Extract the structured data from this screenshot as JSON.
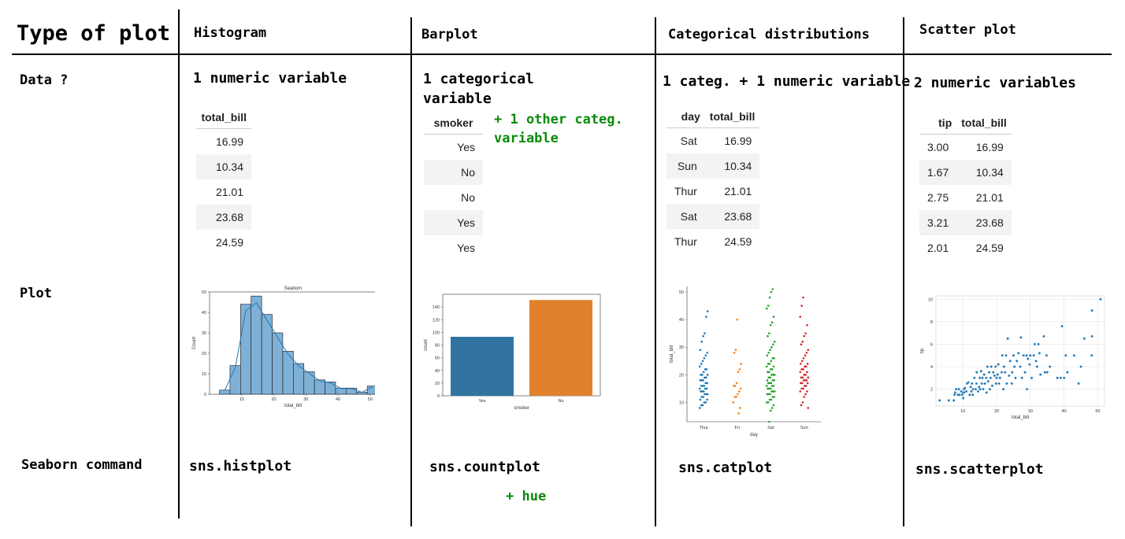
{
  "header": {
    "corner": "Type of plot",
    "columns": [
      "Histogram",
      "Barplot",
      "Categorical distributions",
      "Scatter plot"
    ]
  },
  "rows": {
    "data": "Data ?",
    "plot": "Plot",
    "command": "Seaborn command"
  },
  "data_desc": {
    "histogram": "1 numeric variable",
    "barplot_line1": "1 categorical",
    "barplot_line2": "variable",
    "barplot_extra_line1": "+ 1 other categ.",
    "barplot_extra_line2": "variable",
    "catdist": "1 categ. + 1 numeric variable",
    "scatter": "2 numeric variables"
  },
  "tables": {
    "histogram": {
      "headers": [
        "total_bill"
      ],
      "rows": [
        [
          "16.99"
        ],
        [
          "10.34"
        ],
        [
          "21.01"
        ],
        [
          "23.68"
        ],
        [
          "24.59"
        ]
      ]
    },
    "barplot": {
      "headers": [
        "smoker"
      ],
      "rows": [
        [
          "Yes"
        ],
        [
          "No"
        ],
        [
          "No"
        ],
        [
          "Yes"
        ],
        [
          "Yes"
        ]
      ]
    },
    "catdist": {
      "headers": [
        "day",
        "total_bill"
      ],
      "rows": [
        [
          "Sat",
          "16.99"
        ],
        [
          "Sun",
          "10.34"
        ],
        [
          "Thur",
          "21.01"
        ],
        [
          "Sat",
          "23.68"
        ],
        [
          "Thur",
          "24.59"
        ]
      ]
    },
    "scatter": {
      "headers": [
        "tip",
        "total_bill"
      ],
      "rows": [
        [
          "3.00",
          "16.99"
        ],
        [
          "1.67",
          "10.34"
        ],
        [
          "2.75",
          "21.01"
        ],
        [
          "3.21",
          "23.68"
        ],
        [
          "2.01",
          "24.59"
        ]
      ]
    }
  },
  "commands": {
    "histogram": "sns.histplot",
    "barplot": "sns.countplot",
    "barplot_extra": "+ hue",
    "catdist": "sns.catplot",
    "scatter": "sns.scatterplot"
  },
  "colors": {
    "green": "#0a8a0a",
    "blue": "#1f77b4",
    "orange": "#ff7f0e",
    "sea_blue": "#3274a1",
    "sea_orange": "#e1812c",
    "green_pts": "#2ca02c",
    "red": "#d62728"
  },
  "chart_data": [
    {
      "type": "bar",
      "title": "Seaborn",
      "xlabel": "total_bill",
      "ylabel": "Count",
      "x_ticks": [
        "10",
        "20",
        "30",
        "40",
        "50"
      ],
      "y_ticks": [
        "0",
        "10",
        "20",
        "30",
        "40",
        "50"
      ],
      "xlim": [
        0,
        52
      ],
      "ylim": [
        0,
        50
      ],
      "bin_edges": [
        3.07,
        6.36,
        9.65,
        12.93,
        16.22,
        19.51,
        22.8,
        26.09,
        29.37,
        32.66,
        35.95,
        39.24,
        42.52,
        45.81,
        49.1,
        52.39
      ],
      "values": [
        2,
        14,
        44,
        48,
        39,
        30,
        21,
        15,
        11,
        7,
        6,
        3,
        3,
        1,
        4
      ],
      "kde": true
    },
    {
      "type": "bar",
      "xlabel": "smoker",
      "ylabel": "count",
      "categories": [
        "Yes",
        "No"
      ],
      "values": [
        93,
        151
      ],
      "y_ticks": [
        "0",
        "20",
        "40",
        "60",
        "80",
        "100",
        "120",
        "140"
      ],
      "ylim": [
        0,
        160
      ]
    },
    {
      "type": "scatter",
      "xlabel": "day",
      "ylabel": "total_bill",
      "categories": [
        "Thur",
        "Fri",
        "Sat",
        "Sun"
      ],
      "y_ticks": [
        "10",
        "20",
        "30",
        "40",
        "50"
      ],
      "ylim": [
        3,
        52
      ],
      "series": [
        {
          "category": "Thur",
          "values": [
            8,
            9,
            9,
            10,
            10,
            11,
            11,
            12,
            12,
            13,
            13,
            13,
            14,
            14,
            14,
            15,
            15,
            15,
            16,
            16,
            16,
            17,
            17,
            18,
            18,
            18,
            19,
            19,
            20,
            20,
            20,
            21,
            22,
            22,
            23,
            24,
            25,
            26,
            27,
            28,
            29,
            32,
            34,
            35,
            41,
            43
          ]
        },
        {
          "category": "Fri",
          "values": [
            6,
            8,
            10,
            12,
            12,
            13,
            14,
            15,
            16,
            16,
            17,
            21,
            22,
            24,
            28,
            29,
            40
          ]
        },
        {
          "category": "Sat",
          "values": [
            3,
            7,
            8,
            9,
            10,
            10,
            11,
            11,
            12,
            12,
            13,
            13,
            13,
            14,
            14,
            14,
            15,
            15,
            15,
            16,
            16,
            16,
            17,
            17,
            17,
            18,
            18,
            18,
            19,
            19,
            20,
            20,
            20,
            21,
            21,
            22,
            22,
            23,
            23,
            24,
            24,
            25,
            26,
            26,
            27,
            28,
            29,
            30,
            31,
            32,
            34,
            35,
            38,
            39,
            41,
            44,
            45,
            48,
            50,
            51
          ]
        },
        {
          "category": "Sun",
          "values": [
            8,
            9,
            10,
            12,
            13,
            14,
            14,
            15,
            15,
            16,
            16,
            17,
            17,
            17,
            18,
            18,
            18,
            19,
            19,
            19,
            20,
            20,
            21,
            21,
            22,
            22,
            23,
            23,
            24,
            24,
            25,
            26,
            27,
            28,
            29,
            31,
            32,
            34,
            35,
            38,
            41,
            45,
            48
          ]
        }
      ]
    },
    {
      "type": "scatter",
      "xlabel": "total_bill",
      "ylabel": "tip",
      "x_ticks": [
        "10",
        "20",
        "30",
        "40",
        "50"
      ],
      "y_ticks": [
        "2",
        "4",
        "6",
        "8",
        "10"
      ],
      "xlim": [
        2,
        52
      ],
      "ylim": [
        0.5,
        10.3
      ],
      "points": [
        [
          3.1,
          1
        ],
        [
          5.8,
          1
        ],
        [
          7.3,
          1
        ],
        [
          7.5,
          1.5
        ],
        [
          7.7,
          1.7
        ],
        [
          8,
          2
        ],
        [
          8.5,
          1.5
        ],
        [
          8.8,
          2
        ],
        [
          9,
          1.5
        ],
        [
          9.5,
          1.8
        ],
        [
          9.8,
          1.5
        ],
        [
          10,
          1.7
        ],
        [
          10.1,
          1.2
        ],
        [
          10.3,
          2
        ],
        [
          10.3,
          1.7
        ],
        [
          10.6,
          2.1
        ],
        [
          11,
          1.8
        ],
        [
          11.2,
          2.5
        ],
        [
          11.6,
          2.6
        ],
        [
          12,
          1.5
        ],
        [
          12.3,
          2.2
        ],
        [
          12.5,
          1.8
        ],
        [
          12.7,
          2.5
        ],
        [
          12.9,
          1.5
        ],
        [
          13,
          2
        ],
        [
          13.4,
          3
        ],
        [
          13.8,
          2
        ],
        [
          14,
          2.5
        ],
        [
          14.1,
          3.5
        ],
        [
          14.5,
          1.8
        ],
        [
          14.8,
          2.2
        ],
        [
          15,
          3
        ],
        [
          15.1,
          2
        ],
        [
          15.4,
          3.6
        ],
        [
          15.6,
          2.5
        ],
        [
          15.8,
          3
        ],
        [
          16,
          2
        ],
        [
          16.3,
          3.3
        ],
        [
          16.5,
          2.5
        ],
        [
          16.9,
          3
        ],
        [
          17,
          1.7
        ],
        [
          17.3,
          4
        ],
        [
          17.5,
          2.7
        ],
        [
          17.8,
          3.5
        ],
        [
          18,
          2
        ],
        [
          18.2,
          3
        ],
        [
          18.4,
          4
        ],
        [
          18.7,
          2.3
        ],
        [
          19,
          3.5
        ],
        [
          19.4,
          3.2
        ],
        [
          19.7,
          4
        ],
        [
          19.8,
          2.5
        ],
        [
          20,
          3
        ],
        [
          20.3,
          3.3
        ],
        [
          20.5,
          4.2
        ],
        [
          20.7,
          2.5
        ],
        [
          21,
          3
        ],
        [
          21.5,
          3.5
        ],
        [
          21.7,
          5
        ],
        [
          22,
          2
        ],
        [
          22.2,
          4
        ],
        [
          22.5,
          3.5
        ],
        [
          22.8,
          5
        ],
        [
          23,
          2.5
        ],
        [
          23.3,
          6.5
        ],
        [
          23.7,
          3.2
        ],
        [
          24,
          4.5
        ],
        [
          24.5,
          2.5
        ],
        [
          24.6,
          3.5
        ],
        [
          25,
          5
        ],
        [
          25.3,
          4
        ],
        [
          25.6,
          3
        ],
        [
          26,
          4.5
        ],
        [
          26.5,
          5.2
        ],
        [
          27,
          4
        ],
        [
          27.2,
          6.6
        ],
        [
          27.5,
          3
        ],
        [
          28,
          5
        ],
        [
          28.4,
          3.5
        ],
        [
          28.9,
          5
        ],
        [
          29,
          2
        ],
        [
          29.3,
          4.7
        ],
        [
          29.8,
          4.2
        ],
        [
          30,
          5
        ],
        [
          30.4,
          3
        ],
        [
          31,
          5
        ],
        [
          31.3,
          6
        ],
        [
          31.7,
          4.5
        ],
        [
          32,
          4
        ],
        [
          32.4,
          6
        ],
        [
          32.7,
          5.2
        ],
        [
          33,
          3.3
        ],
        [
          34,
          6.7
        ],
        [
          34.3,
          3.5
        ],
        [
          34.8,
          5
        ],
        [
          35,
          3.5
        ],
        [
          35.8,
          4
        ],
        [
          38,
          3
        ],
        [
          39,
          3
        ],
        [
          39.4,
          7.6
        ],
        [
          40,
          3
        ],
        [
          40.5,
          5
        ],
        [
          41,
          3.5
        ],
        [
          43,
          5
        ],
        [
          44.3,
          2.5
        ],
        [
          45,
          4
        ],
        [
          46,
          6.5
        ],
        [
          48.2,
          5
        ],
        [
          48.3,
          9
        ],
        [
          48.3,
          6.7
        ],
        [
          50.8,
          10
        ]
      ]
    }
  ]
}
